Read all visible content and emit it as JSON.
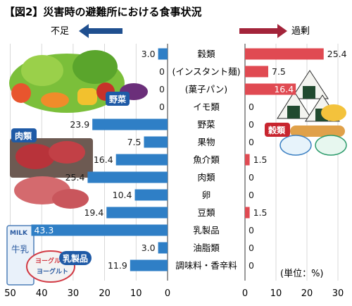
{
  "title": "【図2】災害時の避難所における食事状況",
  "left_direction_label": "不足",
  "right_direction_label": "過剰",
  "unit_note": "(単位：%)",
  "badges": {
    "vegetables": "野菜",
    "meat": "肉類",
    "dairy": "乳製品",
    "grains": "穀類"
  },
  "illustration_text": {
    "milk": "MILK",
    "milk_carton": "牛乳",
    "yogurt": "ヨーグルト",
    "yogurt_cup": "ヨーグルト"
  },
  "colors": {
    "left_bar": "#2f7fc6",
    "right_bar": "#e04a52",
    "left_arrow": "#1f4f8f",
    "right_arrow": "#a3243a",
    "badge": "#1f5aa6",
    "badge_grains": "#c8252f"
  },
  "chart_data": [
    {
      "type": "bar",
      "orientation": "horizontal",
      "direction": "leftward",
      "categories": [
        "穀類",
        "(インスタント麺)",
        "(菓子パン)",
        "イモ類",
        "野菜",
        "果物",
        "魚介類",
        "肉類",
        "卵",
        "豆類",
        "乳製品",
        "油脂類",
        "調味料・香辛料"
      ],
      "values": [
        3.0,
        0,
        0,
        0,
        23.9,
        7.5,
        16.4,
        25.4,
        10.4,
        19.4,
        43.3,
        3.0,
        11.9
      ],
      "value_labels": [
        "3.0",
        "0",
        "0",
        "0",
        "23.9",
        "7.5",
        "16.4",
        "25.4",
        "10.4",
        "19.4",
        "43.3",
        "3.0",
        "11.9"
      ],
      "xlim": [
        0,
        50
      ],
      "x_ticks": [
        "50",
        "40",
        "30",
        "20",
        "10",
        "0"
      ]
    },
    {
      "type": "bar",
      "orientation": "horizontal",
      "direction": "rightward",
      "categories": [
        "穀類",
        "(インスタント麺)",
        "(菓子パン)",
        "イモ類",
        "野菜",
        "果物",
        "魚介類",
        "肉類",
        "卵",
        "豆類",
        "乳製品",
        "油脂類",
        "調味料・香辛料"
      ],
      "values": [
        25.4,
        7.5,
        16.4,
        0,
        0,
        0,
        1.5,
        0,
        0,
        1.5,
        0,
        0,
        0
      ],
      "value_labels": [
        "25.4",
        "7.5",
        "16.4",
        "0",
        "0",
        "0",
        "1.5",
        "0",
        "0",
        "1.5",
        "0",
        "0",
        "0"
      ],
      "xlim": [
        0,
        30
      ],
      "x_ticks": [
        "0",
        "10",
        "20",
        "30"
      ]
    }
  ]
}
